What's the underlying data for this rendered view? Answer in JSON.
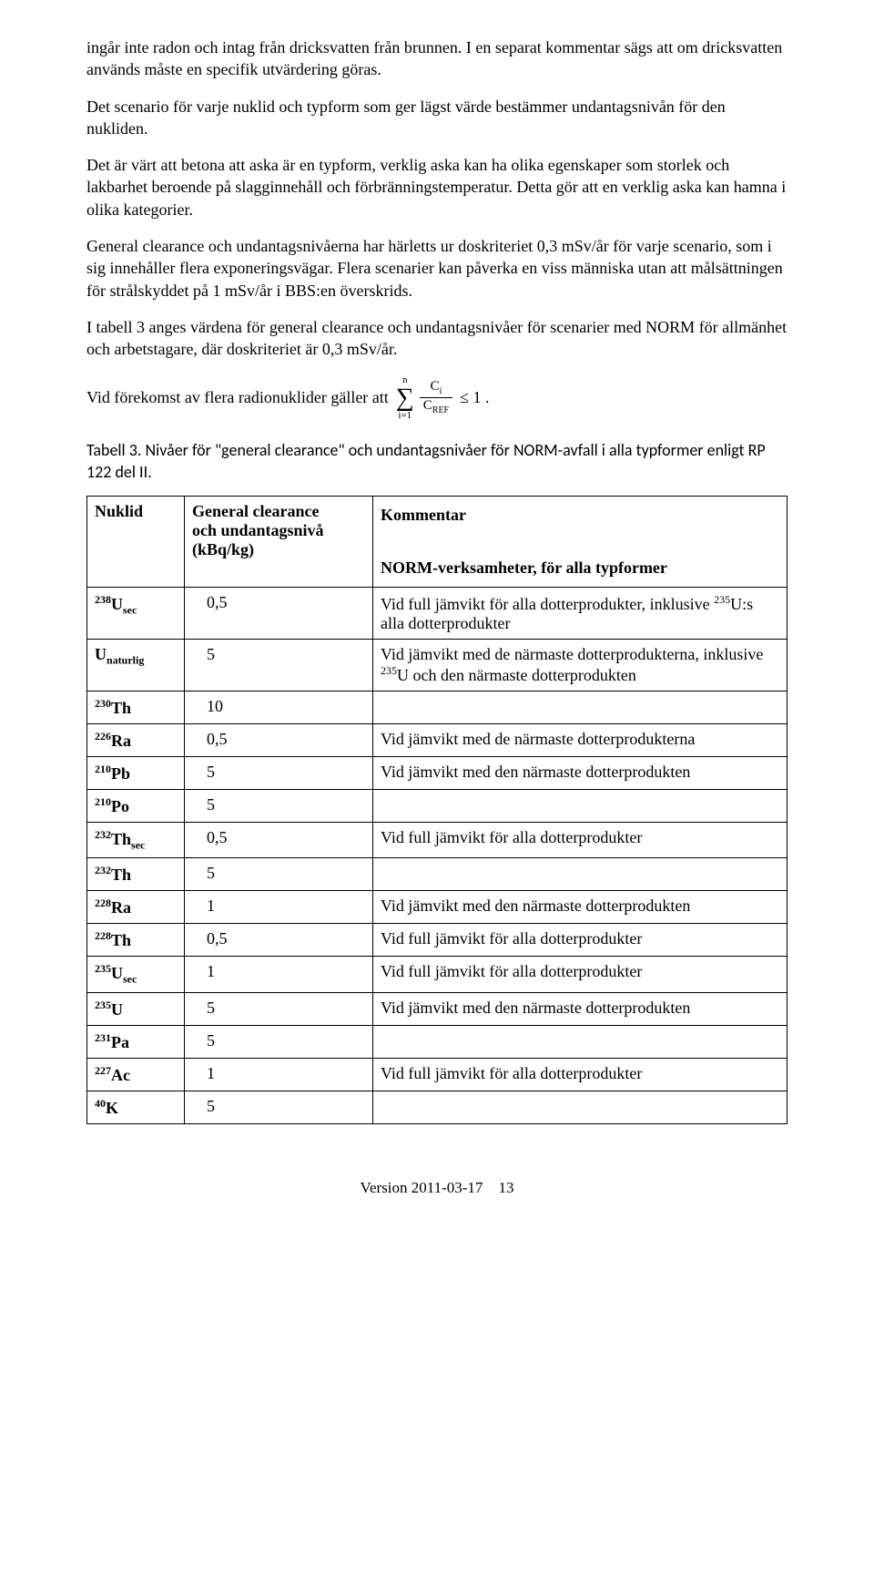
{
  "paragraphs": {
    "p1": "ingår inte radon och intag från dricksvatten från brunnen. I en separat kommentar sägs att om dricksvatten används måste en specifik utvärdering göras.",
    "p2": "Det scenario för varje nuklid och typform som ger lägst värde bestämmer undantagsnivån för den nukliden.",
    "p3": "Det är värt att betona att aska är en typform, verklig aska kan ha olika egenskaper som storlek och lakbarhet beroende på slagginnehåll och förbränningstemperatur. Detta gör att en verklig aska kan hamna i olika kategorier.",
    "p4": "General clearance och undantagsnivåerna har härletts ur doskriteriet 0,3 mSv/år för varje scenario, som i sig innehåller flera exponeringsvägar. Flera scenarier kan påverka en viss människa utan att målsättningen för strålskyddet på 1 mSv/år i BBS:en överskrids.",
    "p5": "I tabell 3 anges värdena för general clearance och undantagsnivåer för scenarier med NORM för allmänhet och arbetstagare, där doskriteriet är 0,3 mSv/år.",
    "formula_lead": "Vid förekomst av flera radionuklider gäller att",
    "formula_sum_top": "n",
    "formula_sum_bot": "i=1",
    "formula_num_c": "C",
    "formula_num_sub": "i",
    "formula_den_c": "C",
    "formula_den_sub": "REF",
    "formula_tail": "≤ 1 .",
    "tabletitle": "Tabell 3. Nivåer för \"general clearance\" och undantagsnivåer för NORM-avfall i alla typformer enligt RP 122 del II."
  },
  "table": {
    "headers": {
      "nuklid": "Nuklid",
      "level_l1": "General clearance",
      "level_l2": "och undantagsnivå",
      "level_l3": "(kBq/kg)",
      "comment_l1": "Kommentar",
      "comment_l2": "NORM-verksamheter, för alla typformer"
    },
    "rows": [
      {
        "sup": "238",
        "sym": "U",
        "sub": "sec",
        "level": "0,5",
        "comment_pre": "Vid full jämvikt för alla dotterprodukter, inklusive ",
        "comment_sup": "235",
        "comment_post": "U:s alla dotterprodukter"
      },
      {
        "sup": "",
        "sym": "U",
        "sub": "naturlig",
        "level": "5",
        "comment_pre": "Vid jämvikt med de närmaste dotterprodukterna, inklusive ",
        "comment_sup": "235",
        "comment_post": "U och den närmaste dotterprodukten"
      },
      {
        "sup": "230",
        "sym": "Th",
        "sub": "",
        "level": "10",
        "comment_pre": "",
        "comment_sup": "",
        "comment_post": ""
      },
      {
        "sup": "226",
        "sym": "Ra",
        "sub": "",
        "level": "0,5",
        "comment_pre": "Vid jämvikt med de närmaste dotterprodukterna",
        "comment_sup": "",
        "comment_post": ""
      },
      {
        "sup": "210",
        "sym": "Pb",
        "sub": "",
        "level": "5",
        "comment_pre": "Vid jämvikt med den närmaste dotterprodukten",
        "comment_sup": "",
        "comment_post": ""
      },
      {
        "sup": "210",
        "sym": "Po",
        "sub": "",
        "level": "5",
        "comment_pre": "",
        "comment_sup": "",
        "comment_post": ""
      },
      {
        "sup": "232",
        "sym": "Th",
        "sub": "sec",
        "level": "0,5",
        "comment_pre": "Vid full jämvikt för alla dotterprodukter",
        "comment_sup": "",
        "comment_post": ""
      },
      {
        "sup": "232",
        "sym": "Th",
        "sub": "",
        "level": "5",
        "comment_pre": "",
        "comment_sup": "",
        "comment_post": ""
      },
      {
        "sup": "228",
        "sym": "Ra",
        "sub": "",
        "level": "1",
        "comment_pre": "Vid jämvikt med den närmaste dotterprodukten",
        "comment_sup": "",
        "comment_post": ""
      },
      {
        "sup": "228",
        "sym": "Th",
        "sub": "",
        "level": "0,5",
        "comment_pre": "Vid full jämvikt för alla dotterprodukter",
        "comment_sup": "",
        "comment_post": ""
      },
      {
        "sup": "235",
        "sym": "U",
        "sub": "sec",
        "level": "1",
        "comment_pre": "Vid full jämvikt för alla dotterprodukter",
        "comment_sup": "",
        "comment_post": ""
      },
      {
        "sup": "235",
        "sym": "U",
        "sub": "",
        "level": "5",
        "comment_pre": "Vid jämvikt med den närmaste dotterprodukten",
        "comment_sup": "",
        "comment_post": ""
      },
      {
        "sup": "231",
        "sym": "Pa",
        "sub": "",
        "level": "5",
        "comment_pre": "",
        "comment_sup": "",
        "comment_post": ""
      },
      {
        "sup": "227",
        "sym": "Ac",
        "sub": "",
        "level": "1",
        "comment_pre": "Vid full jämvikt för alla dotterprodukter",
        "comment_sup": "",
        "comment_post": ""
      },
      {
        "sup": "40",
        "sym": "K",
        "sub": "",
        "level": "5",
        "comment_pre": "",
        "comment_sup": "",
        "comment_post": ""
      }
    ]
  },
  "footer": {
    "version": "Version  2011-03-17",
    "page": "13"
  }
}
